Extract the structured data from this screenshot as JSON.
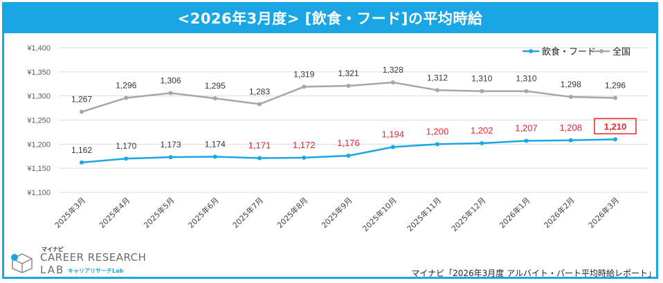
{
  "header": {
    "title": "<2026年3月度> [飲食・フード]の平均時給"
  },
  "source_note": "マイナビ「2026年3月度 アルバイト・パート平均時給レポート」",
  "logo": {
    "small": "マイナビ",
    "main": "CAREER RESEARCH",
    "lab": "LAB",
    "sub": "キャリアリサーチLab"
  },
  "colors": {
    "accent": "#1aa6e4",
    "series_food": "#1aa6e4",
    "series_national": "#a6a6a6",
    "highlight_label": "#e8242b",
    "default_label": "#333333"
  },
  "chart_data": {
    "type": "line",
    "title": "",
    "xlabel": "",
    "ylabel": "",
    "ylim": [
      1100,
      1400
    ],
    "yticks": [
      "¥1,100",
      "¥1,150",
      "¥1,200",
      "¥1,250",
      "¥1,300",
      "¥1,350",
      "¥1,400"
    ],
    "ytick_values": [
      1100,
      1150,
      1200,
      1250,
      1300,
      1350,
      1400
    ],
    "grid": true,
    "legend_position": "top-right",
    "categories": [
      "2025年3月",
      "2025年4月",
      "2025年5月",
      "2025年6月",
      "2025年7月",
      "2025年8月",
      "2025年9月",
      "2025年10月",
      "2025年11月",
      "2025年12月",
      "2026年1月",
      "2026年2月",
      "2026年3月"
    ],
    "series": [
      {
        "name": "飲食・フード",
        "values": [
          1162,
          1170,
          1173,
          1174,
          1171,
          1172,
          1176,
          1194,
          1200,
          1202,
          1207,
          1208,
          1210
        ],
        "labels": [
          "1,162",
          "1,170",
          "1,173",
          "1,174",
          "1,171",
          "1,172",
          "1,176",
          "1,194",
          "1,200",
          "1,202",
          "1,207",
          "1,208",
          "1,210"
        ],
        "label_red": [
          false,
          false,
          false,
          false,
          true,
          true,
          true,
          true,
          true,
          true,
          true,
          true,
          true
        ],
        "boxed_last": true
      },
      {
        "name": "全国",
        "values": [
          1267,
          1296,
          1306,
          1295,
          1283,
          1319,
          1321,
          1328,
          1312,
          1310,
          1310,
          1298,
          1296
        ],
        "labels": [
          "1,267",
          "1,296",
          "1,306",
          "1,295",
          "1,283",
          "1,319",
          "1,321",
          "1,328",
          "1,312",
          "1,310",
          "1,310",
          "1,298",
          "1,296"
        ]
      }
    ]
  }
}
